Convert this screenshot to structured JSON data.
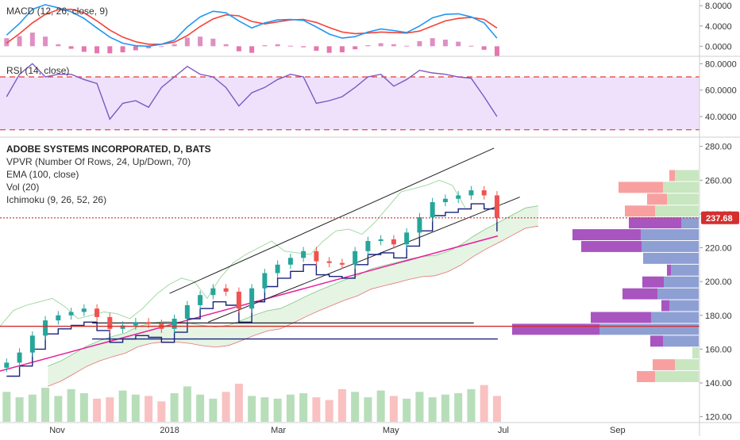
{
  "chart_data": {
    "type": "candlestick",
    "title": "ADOBE SYSTEMS INCORPORATED, D, BATS",
    "indicators": [
      "VPVR (Number Of Rows, 24, Up/Down, 70)",
      "EMA (100, close)",
      "Vol (20)",
      "Ichimoku (9, 26, 52, 26)"
    ],
    "time_axis": {
      "labels": [
        "Nov",
        "2018",
        "Mar",
        "May",
        "Jul",
        "Sep"
      ],
      "range": [
        "2017-10-01",
        "2018-10-15"
      ]
    },
    "price_axis": {
      "ticks": [
        "280.00",
        "260.00",
        "240.00",
        "220.00",
        "200.00",
        "180.00",
        "160.00",
        "140.00",
        "120.00"
      ],
      "range": [
        117,
        285
      ]
    },
    "last_price": "237.68",
    "price_series_weekly": {
      "dates": [
        "2017-10-02",
        "2017-10-09",
        "2017-10-16",
        "2017-10-23",
        "2017-10-30",
        "2017-11-06",
        "2017-11-13",
        "2017-11-20",
        "2017-11-27",
        "2017-12-04",
        "2017-12-11",
        "2017-12-18",
        "2017-12-25",
        "2018-01-01",
        "2018-01-08",
        "2018-01-15",
        "2018-01-22",
        "2018-01-29",
        "2018-02-05",
        "2018-02-12",
        "2018-02-19",
        "2018-02-26",
        "2018-03-05",
        "2018-03-12",
        "2018-03-19",
        "2018-03-26",
        "2018-04-02",
        "2018-04-09",
        "2018-04-16",
        "2018-04-23",
        "2018-04-30",
        "2018-05-07",
        "2018-05-14",
        "2018-05-21",
        "2018-05-28",
        "2018-06-04",
        "2018-06-11",
        "2018-06-18",
        "2018-06-25"
      ],
      "close": [
        152,
        158,
        168,
        177,
        180,
        182,
        184,
        179,
        172,
        174,
        176,
        175,
        172,
        178,
        186,
        192,
        196,
        194,
        184,
        196,
        205,
        210,
        214,
        218,
        212,
        211,
        210,
        218,
        224,
        225,
        222,
        229,
        238,
        247,
        249,
        251,
        254,
        251,
        237.68
      ]
    },
    "ema_100": {
      "start": 147,
      "end": 227
    },
    "regression_channel": {
      "upper_line": {
        "from": [
          "2018-01-01",
          193
        ],
        "to": [
          "2018-06-26",
          279
        ]
      },
      "lower_line": {
        "from": [
          "2018-01-22",
          176
        ],
        "to": [
          "2018-07-10",
          250
        ]
      }
    },
    "horizontal_levels": [
      {
        "price": 237.68,
        "style": "dotted",
        "color": "#d32f2f"
      },
      {
        "price": 173.5,
        "style": "solid",
        "color": "#d32f2f"
      }
    ],
    "vpvr_rows": [
      {
        "low": 259,
        "up": 30,
        "down": 7
      },
      {
        "low": 252,
        "up": 45,
        "down": 56
      },
      {
        "low": 245,
        "up": 40,
        "down": 25
      },
      {
        "low": 238,
        "up": 55,
        "down": 38
      },
      {
        "low": 231,
        "up": 22,
        "down": 66
      },
      {
        "low": 224,
        "up": 73,
        "down": 86
      },
      {
        "low": 217,
        "up": 72,
        "down": 76
      },
      {
        "low": 210,
        "up": 70,
        "down": 0
      },
      {
        "low": 203,
        "up": 35,
        "down": 5
      },
      {
        "low": 196,
        "up": 44,
        "down": 27
      },
      {
        "low": 189,
        "up": 52,
        "down": 44
      },
      {
        "low": 182,
        "up": 37,
        "down": 10
      },
      {
        "low": 175,
        "up": 60,
        "down": 76
      },
      {
        "low": 168,
        "up": 125,
        "down": 110
      },
      {
        "low": 161,
        "up": 45,
        "down": 16
      },
      {
        "low": 154,
        "up": 8,
        "down": 0
      },
      {
        "low": 147,
        "up": 30,
        "down": 28
      },
      {
        "low": 140,
        "up": 55,
        "down": 23
      }
    ],
    "volume_weekly": [
      22,
      18,
      20,
      25,
      19,
      24,
      21,
      17,
      18,
      23,
      20,
      19,
      15,
      21,
      26,
      20,
      17,
      22,
      28,
      19,
      18,
      17,
      20,
      21,
      18,
      16,
      24,
      22,
      18,
      23,
      19,
      17,
      22,
      18,
      20,
      21,
      24,
      27,
      19
    ]
  },
  "macd": {
    "title": "MACD (12, 26, close, 9)",
    "ticks": [
      "8.0000",
      "4.0000",
      "0.0000"
    ],
    "range": [
      -1.2,
      8.5
    ],
    "macd_line": [
      2.2,
      4.5,
      7.3,
      8.2,
      7.6,
      6.8,
      5.5,
      3.6,
      1.8,
      0.6,
      0.1,
      0.0,
      0.4,
      1.2,
      3.8,
      5.8,
      6.9,
      6.6,
      5.0,
      3.6,
      4.6,
      5.2,
      5.3,
      5.1,
      3.8,
      2.4,
      1.6,
      1.9,
      2.8,
      3.4,
      3.1,
      2.7,
      4.0,
      5.6,
      6.3,
      6.4,
      5.8,
      4.6,
      1.6
    ],
    "signal_line": [
      0.6,
      2.5,
      4.6,
      6.3,
      7.2,
      7.3,
      6.6,
      5.0,
      3.2,
      1.8,
      0.9,
      0.4,
      0.4,
      0.8,
      2.1,
      3.9,
      5.4,
      6.2,
      6.0,
      4.9,
      4.4,
      4.8,
      5.2,
      5.3,
      4.7,
      3.7,
      2.8,
      2.5,
      2.6,
      2.8,
      2.7,
      2.6,
      3.0,
      4.0,
      5.0,
      5.5,
      5.7,
      5.3,
      3.6
    ],
    "histogram": [
      1.6,
      2.0,
      2.7,
      1.9,
      0.4,
      -0.5,
      -1.1,
      -1.4,
      -1.4,
      -1.2,
      -0.8,
      -0.4,
      0.0,
      0.4,
      1.7,
      1.9,
      1.5,
      0.4,
      -1.0,
      -1.3,
      0.2,
      0.4,
      0.1,
      -0.2,
      -0.9,
      -1.3,
      -1.2,
      -0.6,
      0.2,
      0.6,
      0.4,
      0.1,
      1.0,
      1.6,
      1.3,
      0.9,
      0.1,
      -0.7,
      -2.0
    ]
  },
  "rsi": {
    "title": "RSI (14, close)",
    "ticks": [
      "80.0000",
      "60.0000",
      "40.0000"
    ],
    "range": [
      25,
      85
    ],
    "band": [
      30,
      70
    ],
    "values": [
      55,
      72,
      80,
      70,
      72,
      72,
      68,
      65,
      38,
      50,
      52,
      47,
      62,
      70,
      78,
      72,
      70,
      62,
      48,
      58,
      62,
      68,
      72,
      70,
      50,
      52,
      55,
      62,
      70,
      72,
      63,
      68,
      75,
      73,
      72,
      70,
      69,
      55,
      40
    ]
  },
  "colors": {
    "up": "#26a69a",
    "down": "#ef5350",
    "macd": "#2196f3",
    "signal": "#f44336",
    "rsi": "#7e57c2",
    "ema": "#e91e99",
    "vpvr_up": "#8e9fd4",
    "vpvr_down": "#a855c0",
    "vpvr_up_far": "#c8e6c0",
    "vpvr_down_far": "#f8a0a0",
    "price_tag": "#d32f2f"
  }
}
